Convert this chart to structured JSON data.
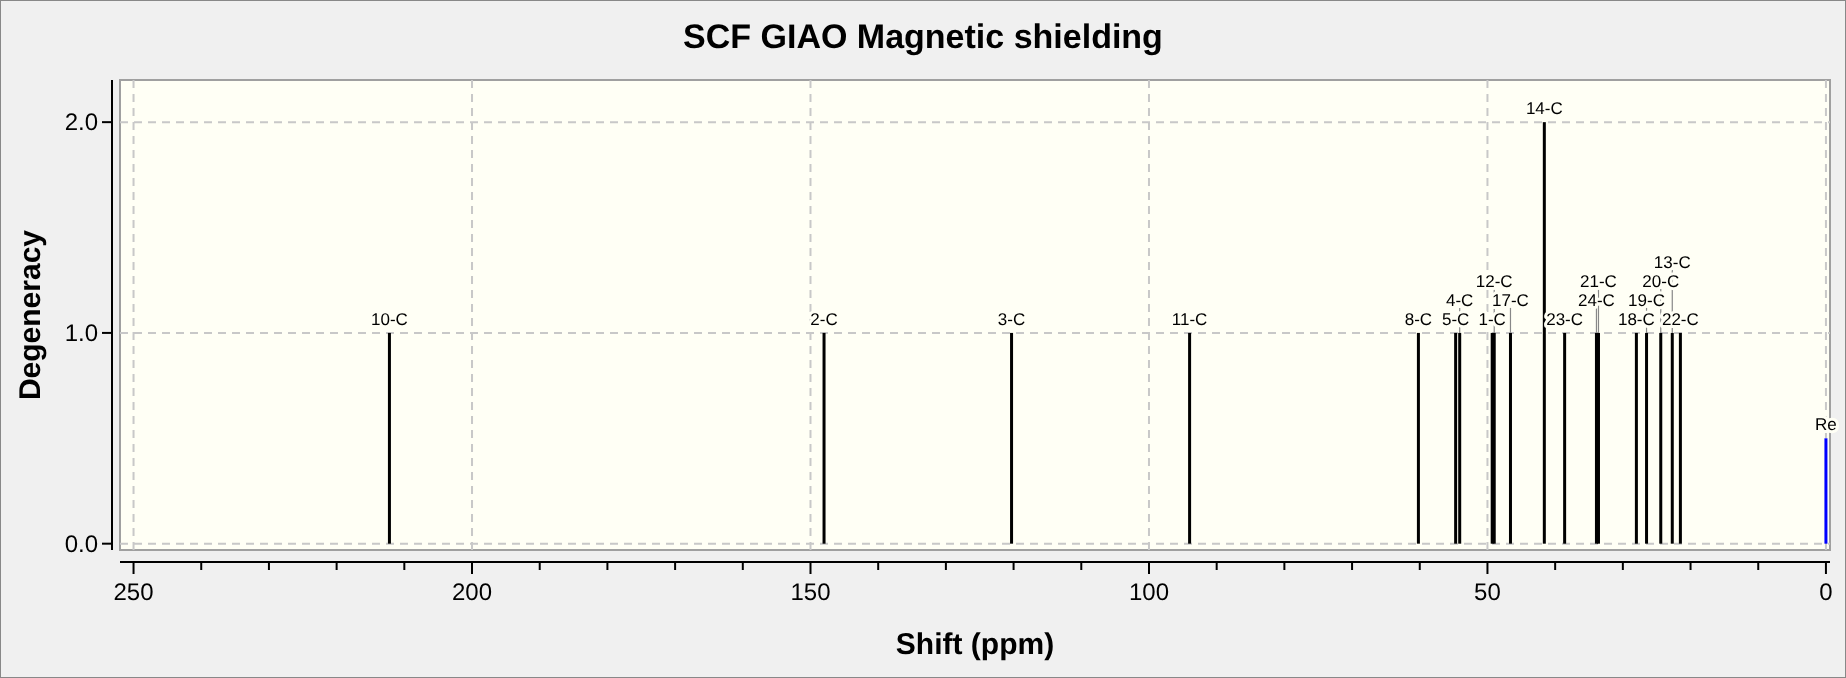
{
  "chart_data": {
    "type": "bar",
    "title": "SCF GIAO Magnetic shielding",
    "xlabel": "Shift (ppm)",
    "ylabel": "Degeneracy",
    "x": [
      212.2,
      148.0,
      120.3,
      94.0,
      60.2,
      54.7,
      54.1,
      49.3,
      49.0,
      46.6,
      41.6,
      38.6,
      33.9,
      33.6,
      28.0,
      26.5,
      24.4,
      22.7,
      21.5,
      0.0
    ],
    "values": [
      1,
      1,
      1,
      1,
      1,
      1,
      1,
      1,
      1,
      1,
      2,
      1,
      1,
      1,
      1,
      1,
      1,
      1,
      1,
      0.5
    ],
    "colors": [
      "#000000",
      "#000000",
      "#000000",
      "#000000",
      "#000000",
      "#000000",
      "#000000",
      "#000000",
      "#000000",
      "#000000",
      "#000000",
      "#000000",
      "#000000",
      "#000000",
      "#000000",
      "#000000",
      "#000000",
      "#000000",
      "#000000",
      "#0000ff"
    ],
    "annotations": [
      {
        "text": "10-C",
        "x": 212.2,
        "y": 1
      },
      {
        "text": "2-C",
        "x": 148.0,
        "y": 1
      },
      {
        "text": "3-C",
        "x": 120.3,
        "y": 1
      },
      {
        "text": "11-C",
        "x": 94.0,
        "y": 1
      },
      {
        "text": "8-C",
        "x": 60.2,
        "y": 1
      },
      {
        "text": "5-C",
        "x": 54.7,
        "y": 1
      },
      {
        "text": "4-C",
        "x": 54.1,
        "y": 1
      },
      {
        "text": "1-C",
        "x": 49.3,
        "y": 1
      },
      {
        "text": "12-C",
        "x": 49.0,
        "y": 1
      },
      {
        "text": "17-C",
        "x": 46.6,
        "y": 1
      },
      {
        "text": "14-C",
        "x": 41.6,
        "y": 2
      },
      {
        "text": "23-C",
        "x": 38.6,
        "y": 1
      },
      {
        "text": "24-C",
        "x": 33.9,
        "y": 1
      },
      {
        "text": "21-C",
        "x": 33.6,
        "y": 1
      },
      {
        "text": "18-C",
        "x": 28.0,
        "y": 1
      },
      {
        "text": "19-C",
        "x": 26.5,
        "y": 1
      },
      {
        "text": "20-C",
        "x": 24.4,
        "y": 1
      },
      {
        "text": "13-C",
        "x": 22.7,
        "y": 1
      },
      {
        "text": "22-C",
        "x": 21.5,
        "y": 1
      },
      {
        "text": "Re",
        "x": 0.0,
        "y": 0.5
      }
    ],
    "xlim": [
      252,
      -0.6
    ],
    "ylim": [
      -0.03,
      2.2
    ],
    "xticks": [
      250,
      {
        "value": 240,
        "label": null
      },
      {
        "value": 230,
        "label": null
      },
      {
        "value": 220,
        "label": null
      },
      {
        "value": 210,
        "label": null
      },
      200,
      {
        "value": 190,
        "label": null
      },
      {
        "value": 180,
        "label": null
      },
      {
        "value": 170,
        "label": null
      },
      {
        "value": 160,
        "label": null
      },
      150,
      {
        "value": 140,
        "label": null
      },
      {
        "value": 130,
        "label": null
      },
      {
        "value": 120,
        "label": null
      },
      {
        "value": 110,
        "label": null
      },
      100,
      {
        "value": 90,
        "label": null
      },
      {
        "value": 80,
        "label": null
      },
      {
        "value": 70,
        "label": null
      },
      {
        "value": 60,
        "label": null
      },
      50,
      {
        "value": 40,
        "label": null
      },
      {
        "value": 30,
        "label": null
      },
      {
        "value": 20,
        "label": null
      },
      {
        "value": 10,
        "label": null
      },
      0
    ],
    "yticks": [
      {
        "value": 0,
        "label": "0.0"
      },
      {
        "value": 1,
        "label": "1.0"
      },
      {
        "value": 2,
        "label": "2.0"
      }
    ],
    "grid": true
  }
}
